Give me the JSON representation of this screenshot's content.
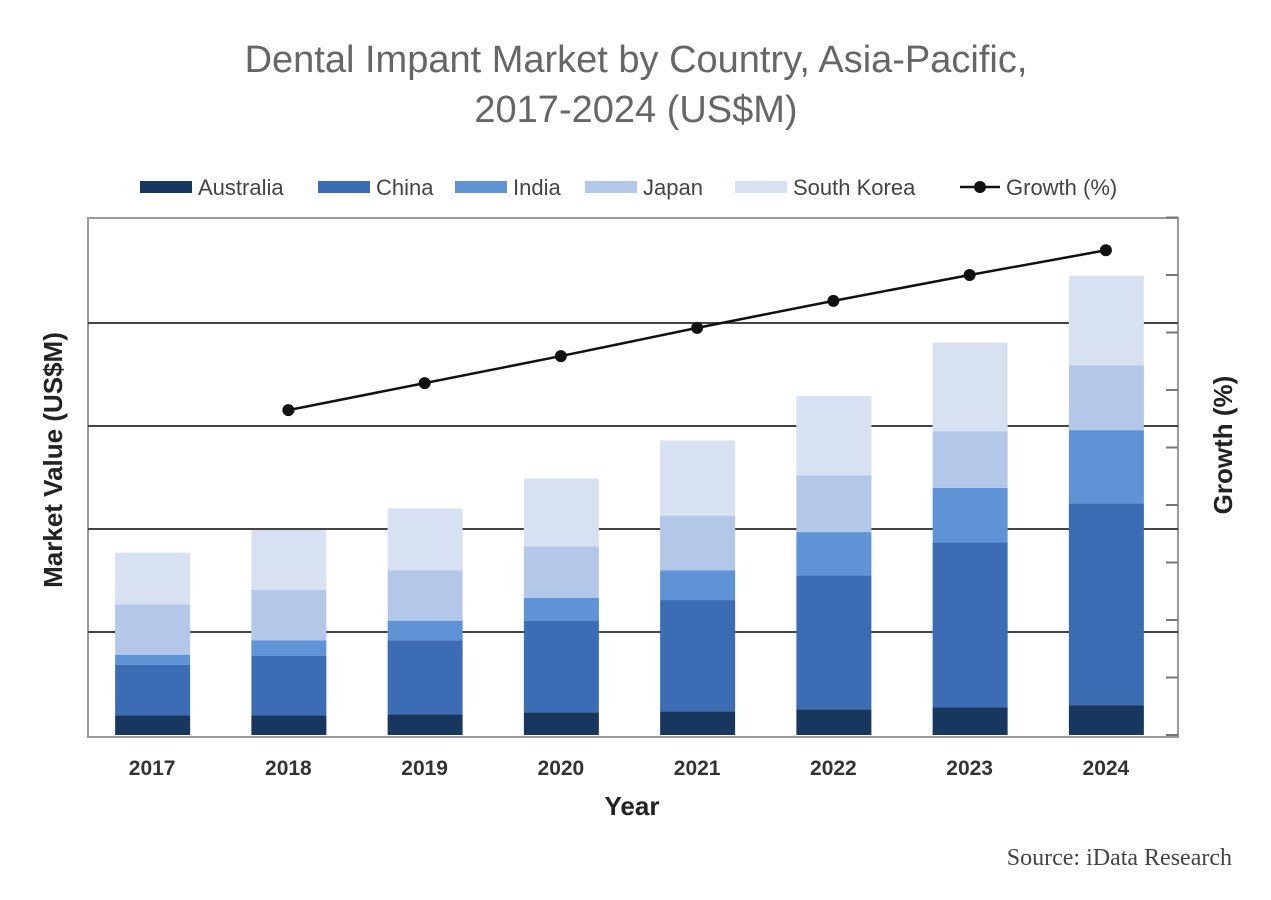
{
  "chart_data": {
    "type": "bar",
    "stacked": true,
    "title": "Dental Impant Market by Country, Asia-Pacific, 2017-2024 (US$M)",
    "title_lines": [
      "Dental Impant Market by Country, Asia-Pacific,",
      "2017-2024 (US$M)"
    ],
    "xlabel": "Year",
    "ylabel": "Market Value (US$M)",
    "y2label": "Growth (%)",
    "categories": [
      "2017",
      "2018",
      "2019",
      "2020",
      "2021",
      "2022",
      "2023",
      "2024"
    ],
    "ylim": [
      0,
      5
    ],
    "y2lim": [
      0,
      9
    ],
    "grid": true,
    "legend_position": "top",
    "series": [
      {
        "name": "Australia",
        "color": "#17375e",
        "values": [
          0.19,
          0.19,
          0.2,
          0.22,
          0.23,
          0.25,
          0.27,
          0.29
        ]
      },
      {
        "name": "China",
        "color": "#3b6cb4",
        "values": [
          0.49,
          0.58,
          0.72,
          0.89,
          1.08,
          1.3,
          1.6,
          1.96
        ]
      },
      {
        "name": "India",
        "color": "#5f93d6",
        "values": [
          0.1,
          0.15,
          0.19,
          0.22,
          0.29,
          0.42,
          0.53,
          0.71
        ]
      },
      {
        "name": "Japan",
        "color": "#b3c8e9",
        "values": [
          0.49,
          0.49,
          0.49,
          0.5,
          0.53,
          0.55,
          0.55,
          0.63
        ]
      },
      {
        "name": "South Korea",
        "color": "#d7e1f1",
        "values": [
          0.5,
          0.58,
          0.6,
          0.66,
          0.73,
          0.77,
          0.86,
          0.87
        ]
      }
    ],
    "line_series": {
      "name": "Growth (%)",
      "color": "#111111",
      "axis": "right",
      "values": [
        null,
        5.65,
        6.12,
        6.59,
        7.08,
        7.55,
        8.0,
        8.43
      ]
    },
    "source": "Source: iData Research"
  }
}
